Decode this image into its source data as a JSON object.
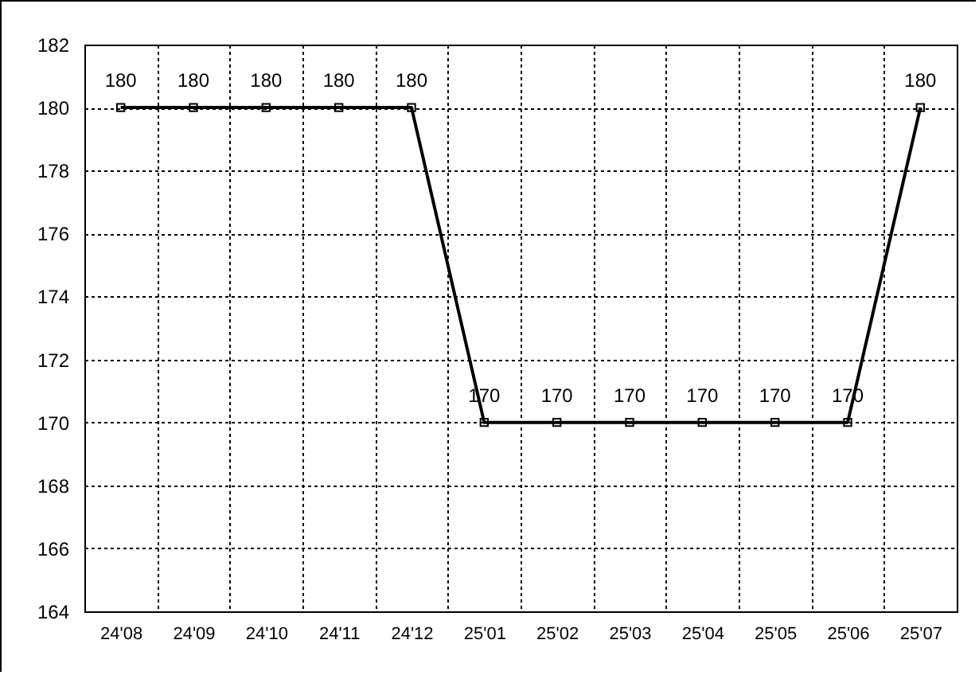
{
  "chart_data": {
    "type": "line",
    "categories": [
      "24'08",
      "24'09",
      "24'10",
      "24'11",
      "24'12",
      "25'01",
      "25'02",
      "25'03",
      "25'04",
      "25'05",
      "25'06",
      "25'07"
    ],
    "values": [
      180,
      180,
      180,
      180,
      180,
      170,
      170,
      170,
      170,
      170,
      170,
      180
    ],
    "color": "#000000",
    "ylim": [
      164,
      182
    ],
    "yticks": [
      164,
      166,
      168,
      170,
      172,
      174,
      176,
      178,
      180,
      182
    ],
    "grid": true,
    "marker": "square",
    "data_labels": true
  }
}
